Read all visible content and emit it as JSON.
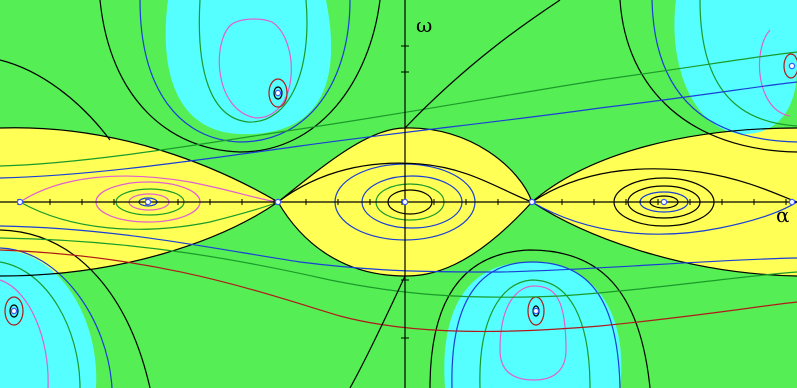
{
  "axes": {
    "y_label": "ω",
    "x_label": "α"
  },
  "colors": {
    "background": "#55ee55",
    "band": "#ffff55",
    "lobe": "#55ffff",
    "contours": [
      "#000000",
      "#1a3fd6",
      "#1a9a2a",
      "#e060d0",
      "#b01a1a",
      "#5a5a5a"
    ],
    "fixed_point": "#3a5aff"
  },
  "icons": {
    "center_marker": "circle-dot",
    "saddle_marker": "small-circle"
  }
}
